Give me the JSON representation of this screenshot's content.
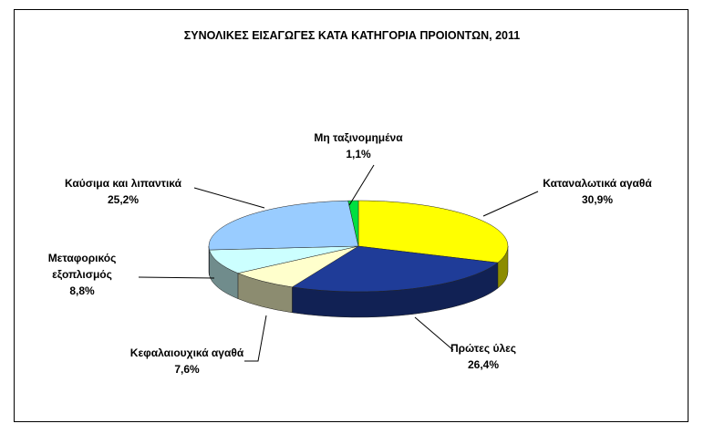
{
  "chart_data": {
    "type": "pie",
    "title": "ΣΥΝΟΛΙΚΕΣ ΕΙΣΑΓΩΓΕΣ ΚΑΤΑ ΚΑΤΗΓΟΡΙΑ ΠΡΟΙΟΝΤΩΝ, 2011",
    "categories": [
      "Καταναλωτικά αγαθά",
      "Πρώτες ύλες",
      "Κεφαλαιουχικά αγαθά",
      "Μεταφορικός εξοπλισμός",
      "Καύσιμα και λιπαντικά",
      "Μη ταξινομημένα"
    ],
    "values": [
      30.9,
      26.4,
      7.6,
      8.8,
      25.2,
      1.1
    ],
    "value_labels": [
      "30,9%",
      "26,4%",
      "7,6%",
      "8,8%",
      "25,2%",
      "1,1%"
    ],
    "colors": [
      "#ffff00",
      "#1f3c98",
      "#ffffcc",
      "#ccffff",
      "#99ccff",
      "#00e040"
    ]
  }
}
